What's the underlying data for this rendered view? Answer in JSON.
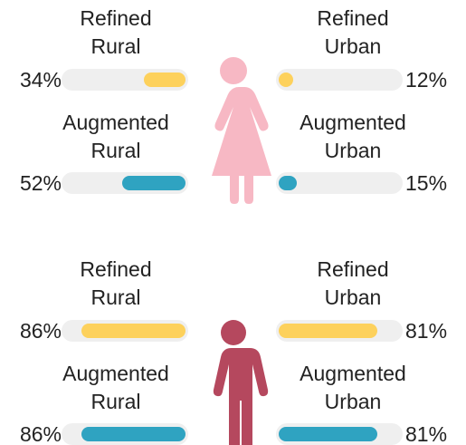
{
  "chart_data": [
    {
      "type": "bar",
      "categories": [
        "Refined Rural",
        "Refined Urban",
        "Augmented Rural",
        "Augmented Urban"
      ],
      "values": [
        34,
        12,
        52,
        15
      ],
      "value_labels": [
        "34%",
        "12%",
        "52%",
        "15%"
      ],
      "colors": [
        "#fdd15c",
        "#fdd15c",
        "#2fa3c1",
        "#2fa3c1"
      ],
      "xlim": [
        0,
        100
      ],
      "icon_color": "#f7b8c4"
    },
    {
      "type": "bar",
      "categories": [
        "Refined Rural",
        "Refined Urban",
        "Augmented Rural",
        "Augmented Urban"
      ],
      "values": [
        86,
        81,
        86,
        81
      ],
      "value_labels": [
        "86%",
        "81%",
        "86%",
        "81%"
      ],
      "colors": [
        "#fdd15c",
        "#fdd15c",
        "#2fa3c1",
        "#2fa3c1"
      ],
      "xlim": [
        0,
        100
      ],
      "icon_color": "#b5485e"
    }
  ]
}
